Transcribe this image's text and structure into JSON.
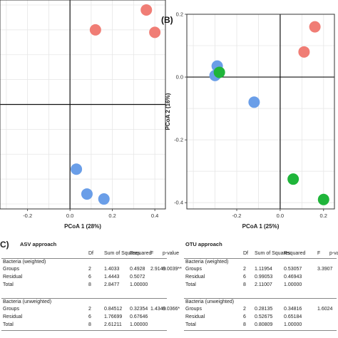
{
  "chart_data": [
    {
      "type": "scatter",
      "panel_label": "",
      "xlabel": "PCoA 1 (28%)",
      "ylabel": "",
      "xlim": [
        -0.33,
        0.45
      ],
      "ylim": [
        -0.42,
        0.42
      ],
      "xticks": [
        -0.2,
        0,
        0.2,
        0.4
      ],
      "xtick_labels": [
        "-0.2",
        "0.0",
        "0.2",
        "0.4"
      ],
      "grid": true,
      "reference_lines": {
        "x": 0,
        "y": 0
      },
      "series": [
        {
          "color": "#f07d75",
          "points": [
            {
              "x": 0.12,
              "y": 0.3
            },
            {
              "x": 0.36,
              "y": 0.38
            },
            {
              "x": 0.4,
              "y": 0.29
            }
          ]
        },
        {
          "color": "#6a9ee8",
          "points": [
            {
              "x": 0.03,
              "y": -0.26
            },
            {
              "x": 0.08,
              "y": -0.36
            },
            {
              "x": 0.16,
              "y": -0.38
            }
          ]
        }
      ]
    },
    {
      "type": "scatter",
      "panel_label": "(B)",
      "xlabel": "PCoA 1 (25%)",
      "ylabel": "PCoA 2 (16%)",
      "xlim": [
        -0.43,
        0.25
      ],
      "ylim": [
        -0.42,
        0.2
      ],
      "yticks": [
        0.2,
        0.0,
        -0.2,
        -0.4
      ],
      "ytick_labels": [
        "0.2",
        "0.0",
        "-0.2",
        "-0.4"
      ],
      "xticks": [
        -0.2,
        0.0,
        0.2
      ],
      "xtick_labels": [
        "-0.2",
        "0.0",
        "0.2"
      ],
      "grid": true,
      "reference_lines": {
        "x": 0,
        "y": 0
      },
      "series": [
        {
          "color": "#f07d75",
          "points": [
            {
              "x": 0.16,
              "y": 0.16
            },
            {
              "x": 0.11,
              "y": 0.08
            }
          ]
        },
        {
          "color": "#6a9ee8",
          "points": [
            {
              "x": -0.29,
              "y": 0.035
            },
            {
              "x": -0.3,
              "y": 0.005
            },
            {
              "x": -0.12,
              "y": -0.08
            }
          ]
        },
        {
          "color": "#1fb53a",
          "points": [
            {
              "x": -0.28,
              "y": 0.015
            },
            {
              "x": 0.06,
              "y": -0.325
            },
            {
              "x": 0.2,
              "y": -0.39
            }
          ]
        }
      ]
    }
  ],
  "panel_c": {
    "label": "C)",
    "columns": [
      "Df",
      "Sum of Squares",
      "Rsquared",
      "F",
      "p-value"
    ],
    "asv": {
      "title": "ASV approach",
      "sections": [
        {
          "name": "Bacteria (weighted)",
          "rows": [
            {
              "term": "Groups",
              "df": "2",
              "ss": "1.4033",
              "r2": "0.4928",
              "f": "2.9149",
              "p": "0.0039**"
            },
            {
              "term": "Residual",
              "df": "6",
              "ss": "1.4443",
              "r2": "0.5072",
              "f": "",
              "p": ""
            },
            {
              "term": "Total",
              "df": "8",
              "ss": "2.8477",
              "r2": "1.00000",
              "f": "",
              "p": ""
            }
          ]
        },
        {
          "name": "Bacteria (unweighted)",
          "rows": [
            {
              "term": "Groups",
              "df": "2",
              "ss": "0.84512",
              "r2": "0.32354",
              "f": "1.4349",
              "p": "0.0366*"
            },
            {
              "term": "Residual",
              "df": "6",
              "ss": "1.76699",
              "r2": "0.67646",
              "f": "",
              "p": ""
            },
            {
              "term": "Total",
              "df": "8",
              "ss": "2.61211",
              "r2": "1.00000",
              "f": "",
              "p": ""
            }
          ]
        }
      ]
    },
    "otu": {
      "title": "OTU approach",
      "sections": [
        {
          "name": "Bacteria (weighted)",
          "rows": [
            {
              "term": "Groups",
              "df": "2",
              "ss": "1.11954",
              "r2": "0.53057",
              "f": "3.3907",
              "p": ""
            },
            {
              "term": "Residual",
              "df": "6",
              "ss": "0.99053",
              "r2": "0.46943",
              "f": "",
              "p": ""
            },
            {
              "term": "Total",
              "df": "8",
              "ss": "2.11007",
              "r2": "1.00000",
              "f": "",
              "p": ""
            }
          ]
        },
        {
          "name": "Bacteria (unweighted)",
          "rows": [
            {
              "term": "Groups",
              "df": "2",
              "ss": "0.28135",
              "r2": "0.34816",
              "f": "1.6024",
              "p": ""
            },
            {
              "term": "Residual",
              "df": "6",
              "ss": "0.52675",
              "r2": "0.65184",
              "f": "",
              "p": ""
            },
            {
              "term": "Total",
              "df": "8",
              "ss": "0.80809",
              "r2": "1.00000",
              "f": "",
              "p": ""
            }
          ]
        }
      ]
    }
  }
}
